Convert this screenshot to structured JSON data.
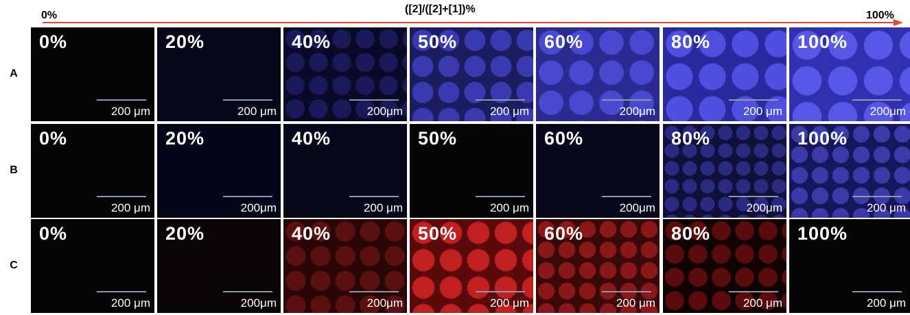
{
  "header": {
    "left": "0%",
    "title": "([2]/([2]+[1])%",
    "right": "100%"
  },
  "rows": [
    {
      "label": "A",
      "panels": [
        {
          "label": "0%",
          "scale": "200 μm"
        },
        {
          "label": "20%",
          "scale": "200 μm"
        },
        {
          "label": "40%",
          "scale": "200μm"
        },
        {
          "label": "50%",
          "scale": "200 μm"
        },
        {
          "label": "60%",
          "scale": "200μm"
        },
        {
          "label": "80%",
          "scale": "200 μm"
        },
        {
          "label": "100%",
          "scale": "200μm"
        }
      ]
    },
    {
      "label": "B",
      "panels": [
        {
          "label": "0%",
          "scale": "200 μm"
        },
        {
          "label": "20%",
          "scale": "200μm"
        },
        {
          "label": "40%",
          "scale": "200 μm"
        },
        {
          "label": "50%",
          "scale": "200 μm"
        },
        {
          "label": "60%",
          "scale": "200μm"
        },
        {
          "label": "80%",
          "scale": "200μm"
        },
        {
          "label": "100%",
          "scale": "200 μm"
        }
      ]
    },
    {
      "label": "C",
      "panels": [
        {
          "label": "0%",
          "scale": "200 μm"
        },
        {
          "label": "20%",
          "scale": "200μm"
        },
        {
          "label": "40%",
          "scale": "200μm"
        },
        {
          "label": "50%",
          "scale": "200 μm"
        },
        {
          "label": "60%",
          "scale": "200 μm"
        },
        {
          "label": "80%",
          "scale": "200 μm"
        },
        {
          "label": "100%",
          "scale": "200 μm"
        }
      ]
    }
  ]
}
